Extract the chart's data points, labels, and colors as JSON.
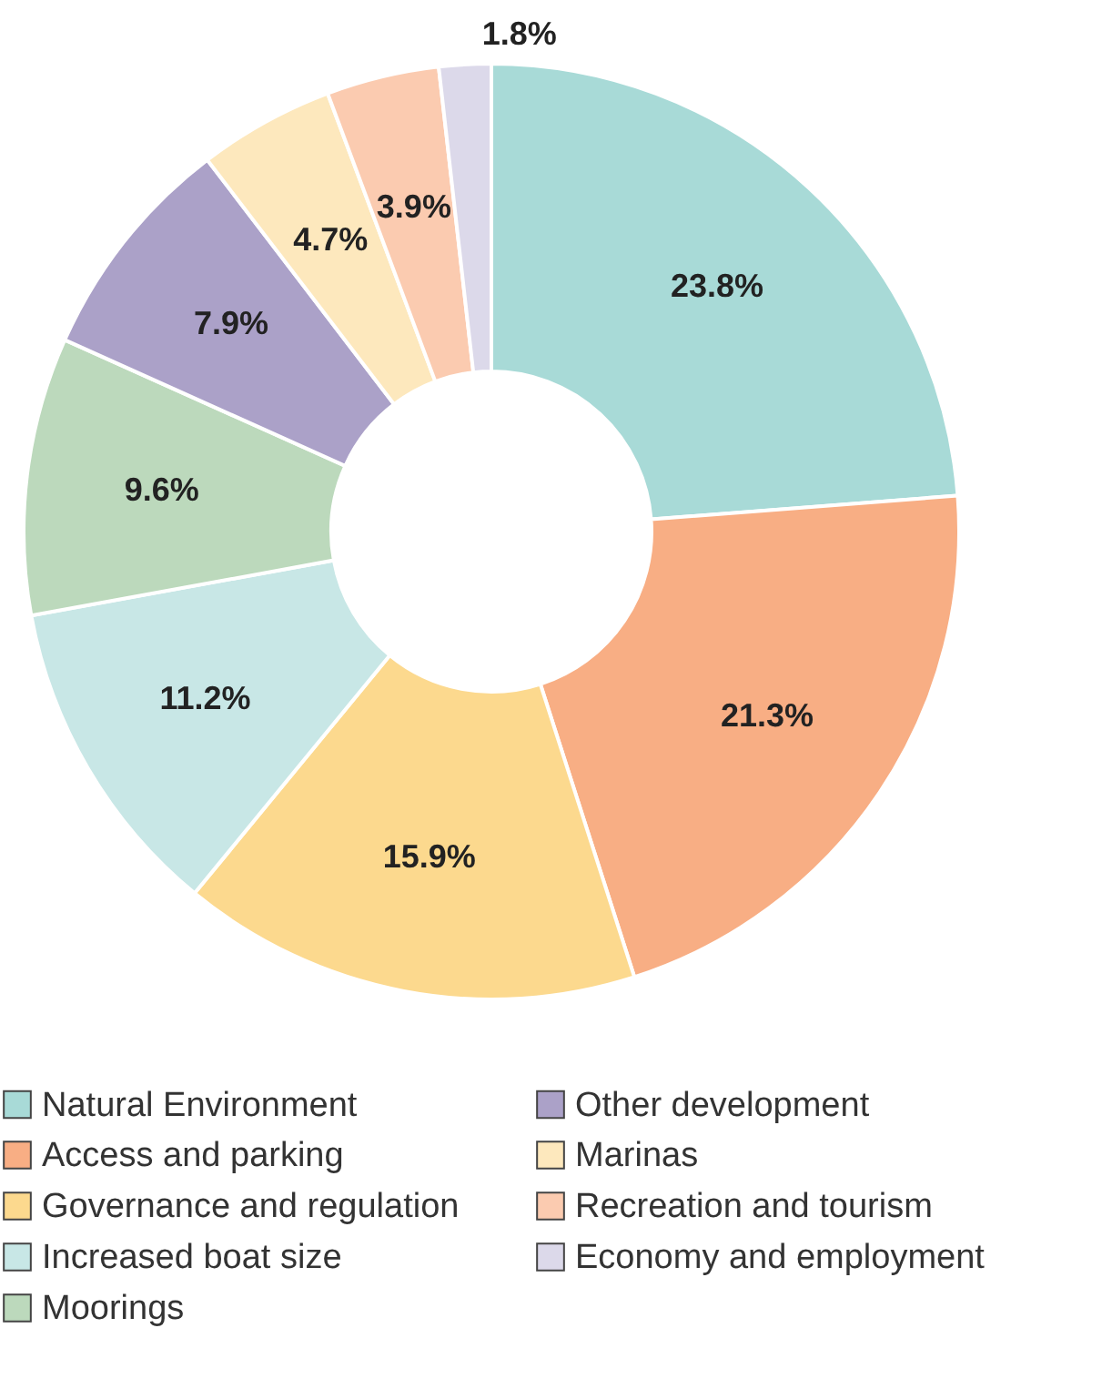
{
  "chart_data": {
    "type": "donut",
    "categories": [
      "Natural Environment",
      "Access and parking",
      "Governance and regulation",
      "Increased boat size",
      "Moorings",
      "Other development",
      "Marinas",
      "Recreation and tourism",
      "Economy and employment"
    ],
    "values": [
      23.8,
      21.3,
      15.9,
      11.2,
      9.6,
      7.9,
      4.7,
      3.9,
      1.8
    ],
    "colors": [
      "#a8dad7",
      "#f8ae84",
      "#fcd98e",
      "#c8e7e6",
      "#bcd9bc",
      "#aba1c8",
      "#fde8bd",
      "#fbcbb0",
      "#dcd9ea"
    ],
    "value_labels": [
      "23.8%",
      "21.3%",
      "15.9%",
      "11.2%",
      "9.6%",
      "7.9%",
      "4.7%",
      "3.9%",
      "1.8%"
    ],
    "legend": "bottom"
  }
}
